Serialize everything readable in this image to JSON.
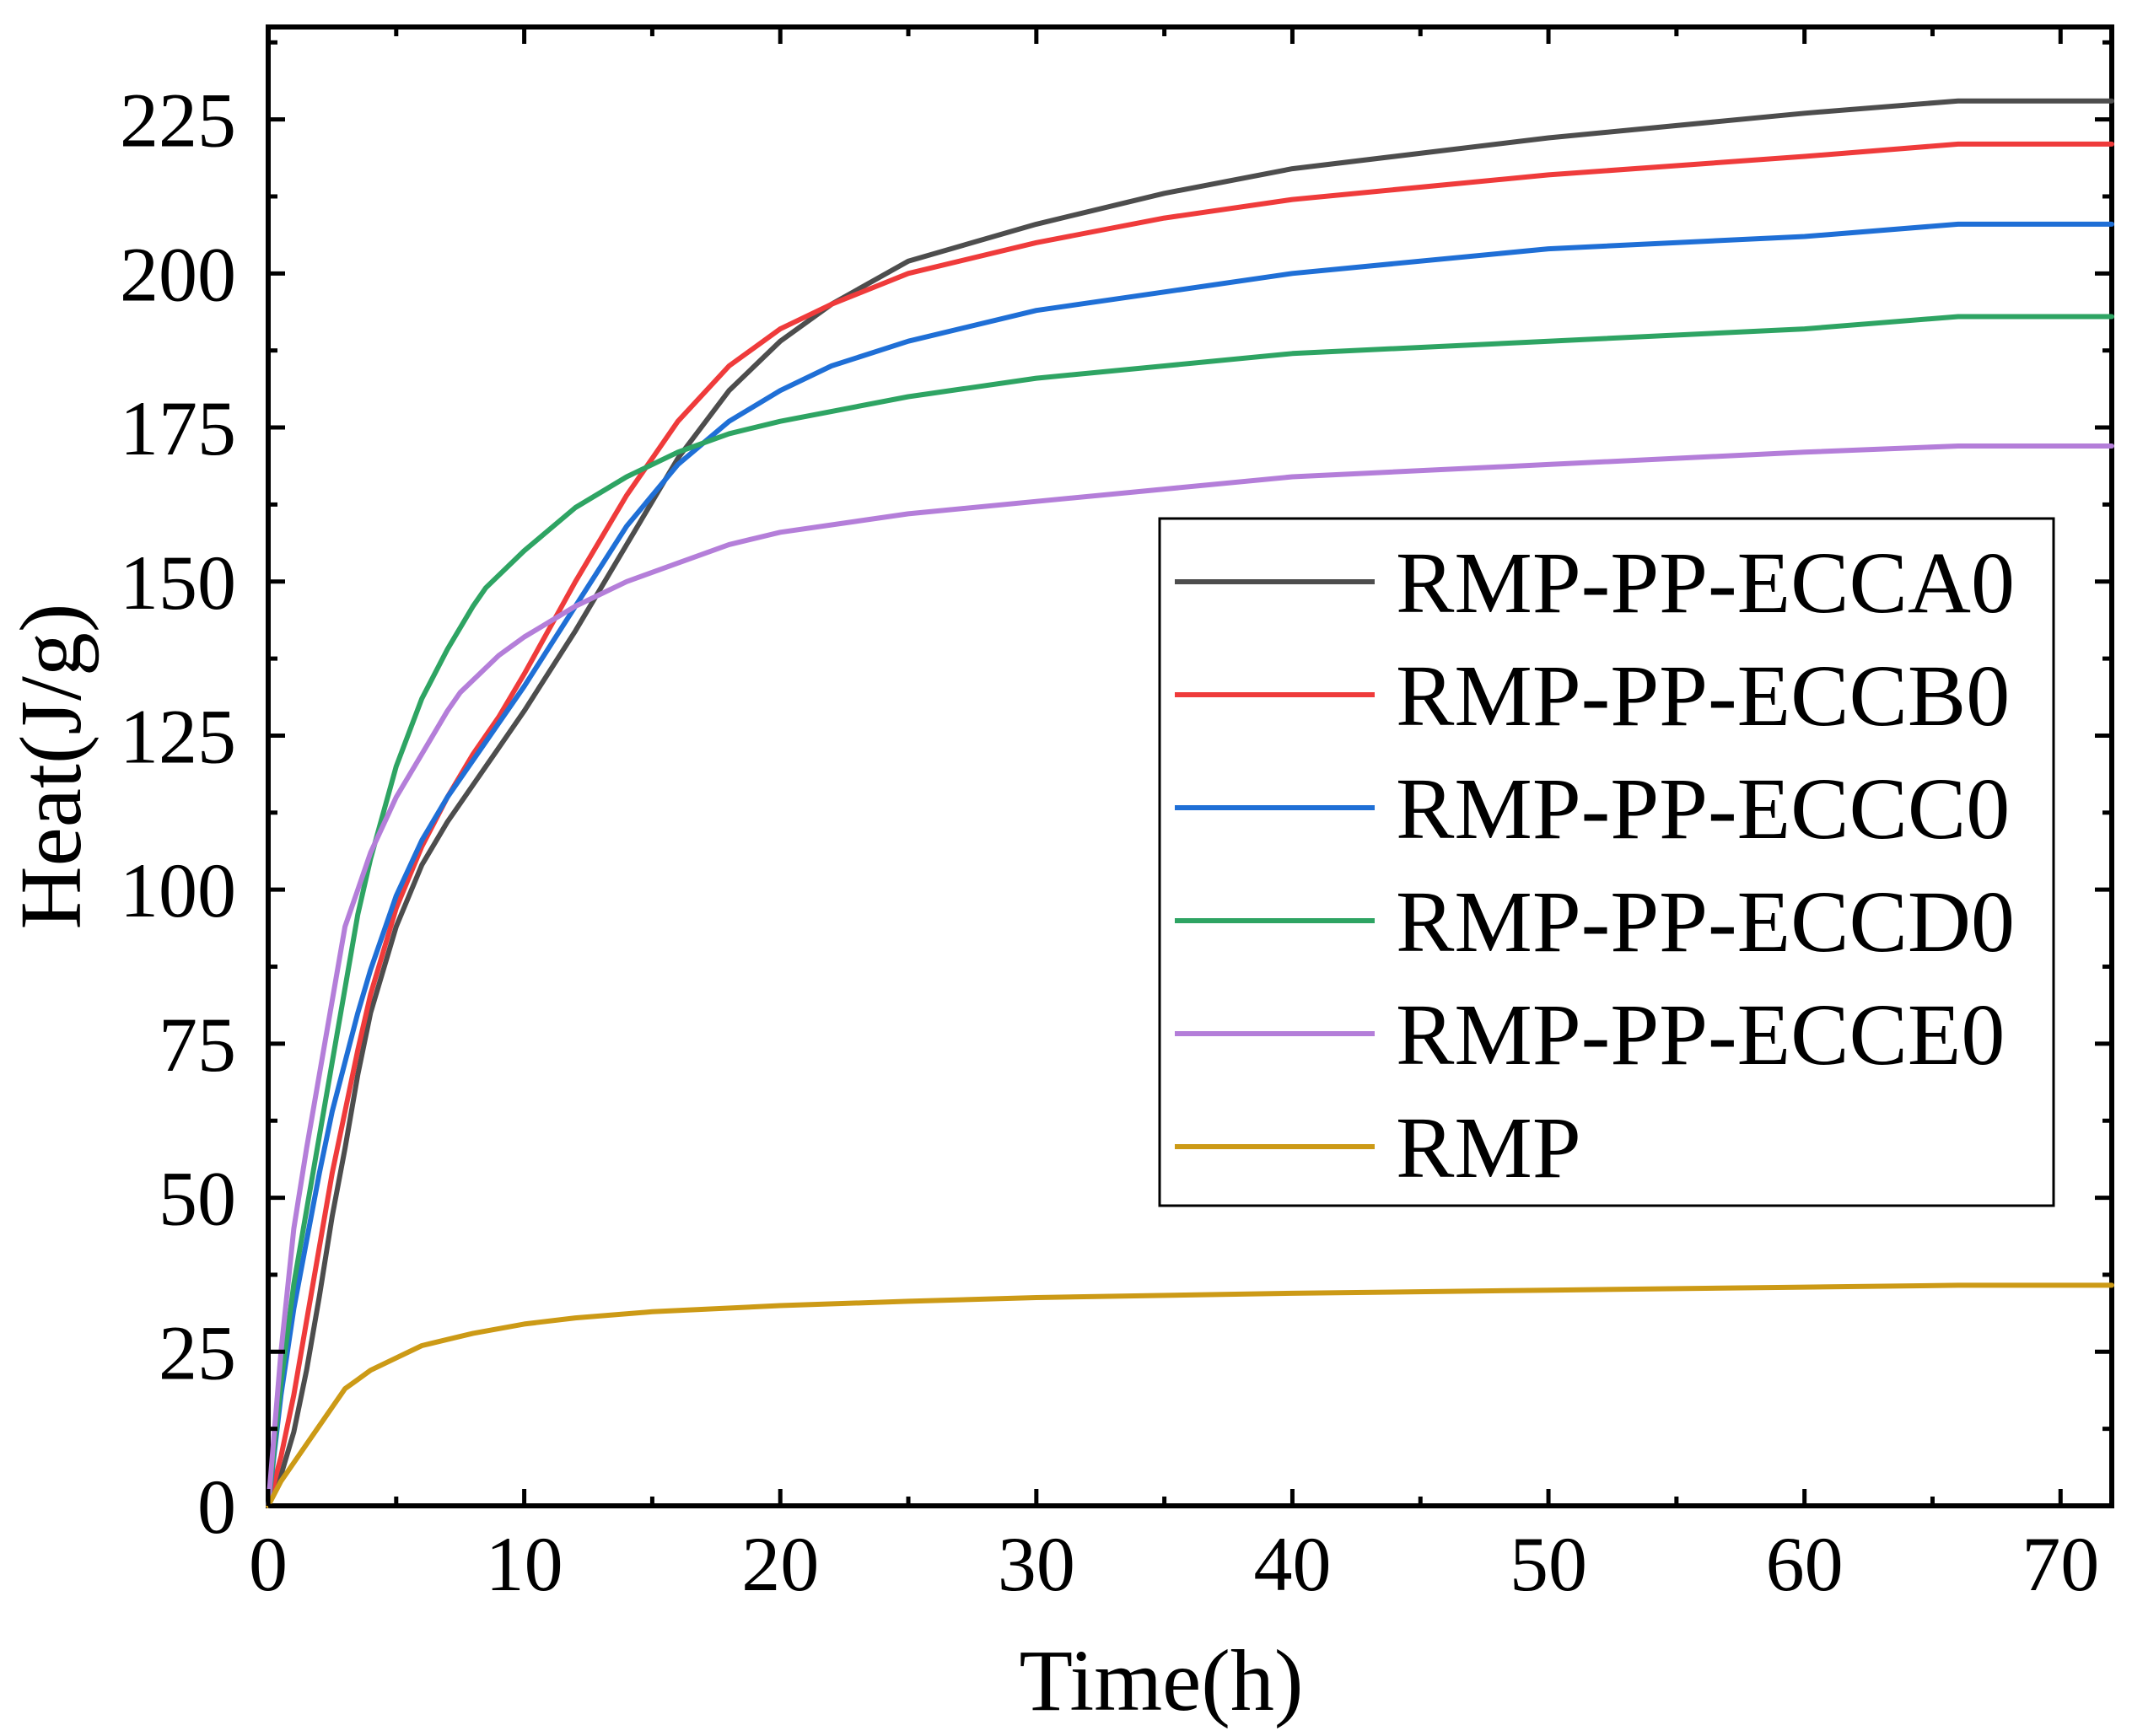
{
  "chart_data": {
    "type": "line",
    "title": "",
    "xlabel": "Time(h)",
    "ylabel": "Heat(J/g)",
    "xlim": [
      0,
      72
    ],
    "ylim": [
      0,
      240
    ],
    "xticks": [
      0,
      10,
      20,
      30,
      40,
      50,
      60,
      70
    ],
    "yticks": [
      0,
      25,
      50,
      75,
      100,
      125,
      150,
      175,
      200,
      225
    ],
    "grid": false,
    "legend_position": "center-right",
    "series": [
      {
        "name": "RMP-PP-ECCA0",
        "color": "#4d4d4d",
        "x": [
          0,
          0.5,
          1,
          1.5,
          2,
          2.5,
          3,
          3.5,
          4,
          5,
          6,
          7,
          8,
          9,
          10,
          12,
          14,
          16,
          18,
          20,
          22,
          25,
          30,
          35,
          40,
          50,
          60,
          66,
          72
        ],
        "y": [
          0,
          5,
          12,
          22,
          34,
          47,
          58,
          70,
          80,
          94,
          104,
          111,
          117,
          123,
          129,
          142,
          156,
          170,
          181,
          189,
          195,
          202,
          208,
          213,
          217,
          222,
          226,
          228,
          228
        ]
      },
      {
        "name": "RMP-PP-ECCB0",
        "color": "#ef3b3b",
        "x": [
          0,
          0.5,
          1,
          1.5,
          2,
          2.5,
          3,
          3.5,
          4,
          5,
          6,
          7,
          8,
          9,
          10,
          12,
          14,
          16,
          18,
          20,
          22,
          25,
          30,
          35,
          40,
          50,
          60,
          66,
          72
        ],
        "y": [
          0,
          8,
          18,
          30,
          42,
          54,
          64,
          74,
          83,
          97,
          107,
          115,
          122,
          128,
          135,
          150,
          164,
          176,
          185,
          191,
          195,
          200,
          205,
          209,
          212,
          216,
          219,
          221,
          221
        ]
      },
      {
        "name": "RMP-PP-ECCC0",
        "color": "#1f6fd6",
        "x": [
          0,
          0.5,
          1,
          1.5,
          2,
          2.5,
          3,
          3.5,
          4,
          5,
          6,
          7,
          8,
          9,
          10,
          12,
          14,
          16,
          18,
          20,
          22,
          25,
          30,
          35,
          40,
          50,
          60,
          66,
          72
        ],
        "y": [
          0,
          18,
          32,
          43,
          54,
          64,
          72,
          80,
          87,
          99,
          108,
          115,
          121,
          127,
          133,
          146,
          159,
          169,
          176,
          181,
          185,
          189,
          194,
          197,
          200,
          204,
          206,
          208,
          208
        ]
      },
      {
        "name": "RMP-PP-ECCD0",
        "color": "#2ea463",
        "x": [
          0,
          0.5,
          1,
          1.5,
          2,
          2.5,
          3,
          3.5,
          4,
          5,
          6,
          7,
          8,
          8.5,
          10,
          12,
          14,
          16,
          18,
          20,
          25,
          30,
          35,
          40,
          50,
          60,
          66,
          72
        ],
        "y": [
          0,
          20,
          36,
          48,
          60,
          72,
          84,
          96,
          105,
          120,
          131,
          139,
          146,
          149,
          155,
          162,
          167,
          171,
          174,
          176,
          180,
          183,
          185,
          187,
          189,
          191,
          193,
          193
        ]
      },
      {
        "name": "RMP-PP-ECCE0",
        "color": "#b47ed9",
        "x": [
          0,
          0.5,
          1,
          1.5,
          2,
          2.5,
          3,
          3.5,
          4,
          5,
          6,
          7,
          7.5,
          9,
          10,
          12,
          14,
          16,
          18,
          20,
          25,
          30,
          35,
          40,
          50,
          60,
          66,
          72
        ],
        "y": [
          0,
          25,
          45,
          58,
          70,
          82,
          94,
          100,
          106,
          115,
          122,
          129,
          132,
          138,
          141,
          146,
          150,
          153,
          156,
          158,
          161,
          163,
          165,
          167,
          169,
          171,
          172,
          172
        ]
      },
      {
        "name": "RMP",
        "color": "#cc9a16",
        "x": [
          0,
          0.5,
          1,
          1.5,
          2,
          2.5,
          3,
          3.5,
          4,
          5,
          6,
          7,
          8,
          10,
          12,
          15,
          20,
          25,
          30,
          40,
          50,
          60,
          66,
          72
        ],
        "y": [
          0,
          4,
          7,
          10,
          13,
          16,
          19,
          20.5,
          22,
          24,
          26,
          27,
          28,
          29.5,
          30.5,
          31.5,
          32.5,
          33.2,
          33.8,
          34.5,
          35,
          35.5,
          35.8,
          35.8
        ]
      }
    ]
  }
}
